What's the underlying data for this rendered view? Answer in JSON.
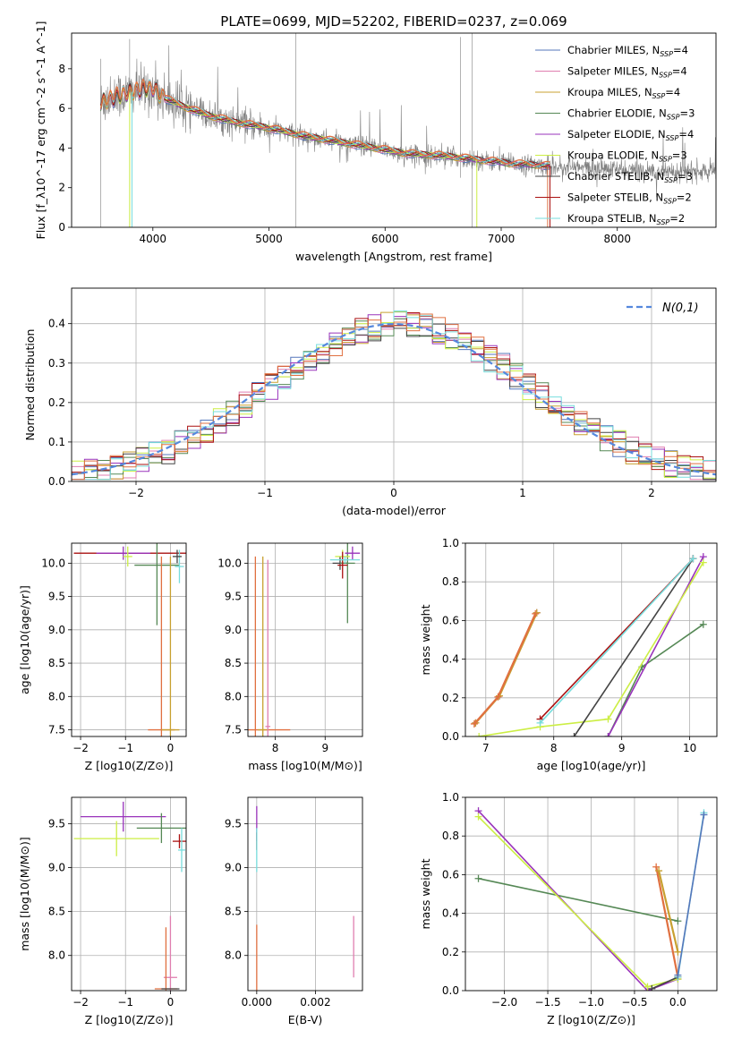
{
  "title": "PLATE=0699, MJD=52202, FIBERID=0237, z=0.069",
  "models": [
    {
      "name": "Chabrier MILES",
      "color": "#5577bb"
    },
    {
      "name": "Salpeter MILES",
      "color": "#e07fb0"
    },
    {
      "name": "Kroupa MILES",
      "color": "#c8a030"
    },
    {
      "name": "Chabrier ELODIE",
      "color": "#558855"
    },
    {
      "name": "Salpeter ELODIE",
      "color": "#9933bb"
    },
    {
      "name": "Kroupa ELODIE",
      "color": "#ccee44"
    },
    {
      "name": "Chabrier STELIB",
      "color": "#444444"
    },
    {
      "name": "Salpeter STELIB",
      "color": "#aa1111"
    },
    {
      "name": "Kroupa STELIB",
      "color": "#77dddd"
    },
    {
      "name": "highlight",
      "color": "#e07040"
    }
  ],
  "chart_data": [
    {
      "id": "spectrum",
      "type": "line",
      "xlabel": "wavelength [Angstrom, rest frame]",
      "ylabel": "Flux [f_λ10^-17 erg cm^-2 s^-1 A^-1]",
      "xlim": [
        3300,
        8850
      ],
      "ylim": [
        0,
        9.8
      ],
      "xticks": [
        4000,
        5000,
        6000,
        7000,
        8000
      ],
      "yticks": [
        0,
        2,
        4,
        6,
        8
      ],
      "grid": false,
      "legend_position": "top-right",
      "legend": [
        {
          "label": "Chabrier MILES",
          "nssp": "4",
          "model": 0
        },
        {
          "label": "Salpeter MILES",
          "nssp": "4",
          "model": 1
        },
        {
          "label": "Kroupa MILES",
          "nssp": "4",
          "model": 2
        },
        {
          "label": "Chabrier ELODIE",
          "nssp": "3",
          "model": 3
        },
        {
          "label": "Salpeter ELODIE",
          "nssp": "4",
          "model": 4
        },
        {
          "label": "Kroupa ELODIE",
          "nssp": "3",
          "model": 5
        },
        {
          "label": "Chabrier STELIB",
          "nssp": "3",
          "model": 6
        },
        {
          "label": "Salpeter STELIB",
          "nssp": "2",
          "model": 7
        },
        {
          "label": "Kroupa STELIB",
          "nssp": "2",
          "model": 8
        }
      ],
      "data_range": [
        3550,
        7420
      ],
      "continuum": {
        "x": [
          3550,
          3700,
          3850,
          4000,
          4100,
          4300,
          4500,
          4700,
          5000,
          5300,
          5600,
          5900,
          6200,
          6500,
          6800,
          7100,
          7400,
          7700,
          8000,
          8300,
          8700
        ],
        "y": [
          6.3,
          6.6,
          6.9,
          7.0,
          6.5,
          6.0,
          5.6,
          5.3,
          5.0,
          4.6,
          4.3,
          4.0,
          3.7,
          3.6,
          3.4,
          3.2,
          3.1,
          3.0,
          2.9,
          2.85,
          2.8
        ]
      }
    },
    {
      "id": "residuals",
      "type": "line",
      "xlabel": "(data-model)/error",
      "ylabel": "Normed distribution",
      "xlim": [
        -2.5,
        2.5
      ],
      "ylim": [
        0,
        0.49
      ],
      "xticks": [
        -2,
        -1,
        0,
        1,
        2
      ],
      "yticks": [
        0.0,
        0.1,
        0.2,
        0.3,
        0.4
      ],
      "grid": true,
      "legend_position": "top-right",
      "legend": [
        {
          "label": "N(0,1)",
          "color": "#5588dd"
        }
      ],
      "bin_width": 0.1
    },
    {
      "id": "age-Z",
      "type": "scatter",
      "xlabel": "Z [log10(Z/Z⊙)]",
      "ylabel": "age  [log10(age/yr)]",
      "xlim": [
        -2.2,
        0.35
      ],
      "ylim": [
        7.4,
        10.3
      ],
      "xticks": [
        -2,
        -1,
        0
      ],
      "yticks": [
        7.5,
        8.0,
        8.5,
        9.0,
        9.5,
        10.0
      ],
      "grid": true,
      "points": [
        {
          "x": -0.85,
          "y": 10.15,
          "xerr": 1.3,
          "yerr": 0.0,
          "model": 7
        },
        {
          "x": -1.05,
          "y": 10.15,
          "xerr": 0.6,
          "yerr": 0.1,
          "model": 4
        },
        {
          "x": -0.3,
          "y": 9.97,
          "xerr": 0.5,
          "yerr": 0.9,
          "model": 3
        },
        {
          "x": -0.2,
          "y": 7.5,
          "xerr": 0.3,
          "yerr": 2.6,
          "model": 9
        },
        {
          "x": 0.0,
          "y": 7.5,
          "xerr": 0.2,
          "yerr": 2.6,
          "model": 2
        },
        {
          "x": 0.2,
          "y": 9.95,
          "xerr": 0.1,
          "yerr": 0.25,
          "model": 8
        },
        {
          "x": 0.15,
          "y": 10.1,
          "xerr": 0.1,
          "yerr": 0.1,
          "model": 6
        },
        {
          "x": -0.95,
          "y": 10.1,
          "xerr": 0.1,
          "yerr": 0.15,
          "model": 5
        }
      ]
    },
    {
      "id": "age-mass",
      "type": "scatter",
      "xlabel": "mass [log10(M/M⊙)]",
      "ylabel": "",
      "xlim": [
        7.45,
        9.75
      ],
      "ylim": [
        7.4,
        10.3
      ],
      "xticks": [
        8,
        9
      ],
      "yticks": [
        7.5,
        8.0,
        8.5,
        9.0,
        9.5,
        10.0
      ],
      "grid": true,
      "points": [
        {
          "x": 7.6,
          "y": 7.5,
          "xerr": 0.7,
          "yerr": 2.6,
          "model": 9
        },
        {
          "x": 7.75,
          "y": 7.5,
          "xerr": 0.1,
          "yerr": 2.6,
          "model": 2
        },
        {
          "x": 7.85,
          "y": 7.55,
          "xerr": 0.05,
          "yerr": 2.5,
          "model": 1
        },
        {
          "x": 9.3,
          "y": 10.0,
          "xerr": 0.15,
          "yerr": 0.1,
          "model": 6
        },
        {
          "x": 9.45,
          "y": 10.0,
          "xerr": 0.15,
          "yerr": 0.9,
          "model": 3
        },
        {
          "x": 9.55,
          "y": 10.15,
          "xerr": 0.15,
          "yerr": 0.1,
          "model": 4
        },
        {
          "x": 9.35,
          "y": 10.1,
          "xerr": 0.15,
          "yerr": 0.1,
          "model": 5
        },
        {
          "x": 9.35,
          "y": 9.97,
          "xerr": 0.1,
          "yerr": 0.2,
          "model": 7
        },
        {
          "x": 9.4,
          "y": 10.05,
          "xerr": 0.3,
          "yerr": 0.05,
          "model": 8
        }
      ]
    },
    {
      "id": "weight-age",
      "type": "line",
      "xlabel": "age  [log10(age/yr)]",
      "ylabel": "mass weight",
      "xlim": [
        6.7,
        10.4
      ],
      "ylim": [
        0,
        1.0
      ],
      "xticks": [
        7,
        8,
        9,
        10
      ],
      "yticks": [
        0.0,
        0.2,
        0.4,
        0.6,
        0.8,
        1.0
      ],
      "grid": true,
      "series": [
        {
          "model": 0,
          "x": [
            6.85,
            7.2,
            7.75
          ],
          "y": [
            0.07,
            0.21,
            0.64
          ]
        },
        {
          "model": 1,
          "x": [
            6.85,
            7.2,
            7.75
          ],
          "y": [
            0.07,
            0.21,
            0.64
          ]
        },
        {
          "model": 2,
          "x": [
            6.85,
            7.2,
            7.75
          ],
          "y": [
            0.07,
            0.21,
            0.64
          ]
        },
        {
          "model": 9,
          "x": [
            6.83,
            7.18,
            7.73
          ],
          "y": [
            0.065,
            0.205,
            0.635
          ]
        },
        {
          "model": 3,
          "x": [
            8.8,
            9.3,
            10.2
          ],
          "y": [
            0.0,
            0.36,
            0.58
          ]
        },
        {
          "model": 4,
          "x": [
            8.8,
            10.2
          ],
          "y": [
            0.0,
            0.93
          ]
        },
        {
          "model": 5,
          "x": [
            6.9,
            7.8,
            8.8,
            10.2
          ],
          "y": [
            0.0,
            0.05,
            0.09,
            0.9
          ]
        },
        {
          "model": 6,
          "x": [
            8.3,
            10.05
          ],
          "y": [
            0.0,
            0.92
          ]
        },
        {
          "model": 7,
          "x": [
            7.8,
            10.05
          ],
          "y": [
            0.09,
            0.92
          ]
        },
        {
          "model": 8,
          "x": [
            7.8,
            10.05
          ],
          "y": [
            0.07,
            0.92
          ]
        }
      ]
    },
    {
      "id": "mass-Z",
      "type": "scatter",
      "xlabel": "Z [log10(Z/Z⊙)]",
      "ylabel": "mass [log10(M/M⊙)]",
      "xlim": [
        -2.2,
        0.35
      ],
      "ylim": [
        7.6,
        9.8
      ],
      "xticks": [
        -2,
        -1,
        0
      ],
      "yticks": [
        8.0,
        8.5,
        9.0,
        9.5
      ],
      "grid": true,
      "points": [
        {
          "x": -1.05,
          "y": 9.58,
          "xerr": 0.95,
          "yerr": 0.17,
          "model": 4
        },
        {
          "x": -1.2,
          "y": 9.33,
          "xerr": 0.95,
          "yerr": 0.2,
          "model": 5
        },
        {
          "x": -0.2,
          "y": 9.45,
          "xerr": 0.55,
          "yerr": 0.17,
          "model": 3
        },
        {
          "x": 0.2,
          "y": 9.3,
          "xerr": 0.15,
          "yerr": 0.08,
          "model": 7
        },
        {
          "x": 0.25,
          "y": 9.2,
          "xerr": 0.08,
          "yerr": 0.25,
          "model": 8
        },
        {
          "x": 0.0,
          "y": 7.75,
          "xerr": 0.15,
          "yerr": 0.7,
          "model": 1
        },
        {
          "x": -0.1,
          "y": 7.62,
          "xerr": 0.25,
          "yerr": 0.7,
          "model": 9
        },
        {
          "x": 0.0,
          "y": 7.62,
          "xerr": 0.2,
          "yerr": 0.0,
          "model": 6
        }
      ]
    },
    {
      "id": "mass-EBV",
      "type": "scatter",
      "xlabel": "E(B-V)",
      "ylabel": "",
      "xlim": [
        -0.0003,
        0.0036
      ],
      "ylim": [
        7.6,
        9.8
      ],
      "xticks": [
        0.0,
        0.002
      ],
      "xticklabels": [
        "0.000",
        "0.002"
      ],
      "yticks": [
        8.0,
        8.5,
        9.0,
        9.5
      ],
      "grid": true,
      "points": [
        {
          "x": 0.0,
          "y": 9.5,
          "xerr": 0.0,
          "yerr": 0.2,
          "model": 4
        },
        {
          "x": 0.0,
          "y": 9.3,
          "xerr": 0.0,
          "yerr": 0.1,
          "model": 7
        },
        {
          "x": 0.0,
          "y": 9.2,
          "xerr": 0.0,
          "yerr": 0.25,
          "model": 8
        },
        {
          "x": 0.0,
          "y": 7.9,
          "xerr": 0.0,
          "yerr": 0.45,
          "model": 9
        },
        {
          "x": 0.0033,
          "y": 8.1,
          "xerr": 0.0,
          "yerr": 0.35,
          "model": 1
        }
      ]
    },
    {
      "id": "weight-Z",
      "type": "line",
      "xlabel": "Z [log10(Z/Z⊙)]",
      "ylabel": "mass weight",
      "xlim": [
        -2.45,
        0.45
      ],
      "ylim": [
        0,
        1.0
      ],
      "xticks": [
        -2.0,
        -1.5,
        -1.0,
        -0.5,
        0.0
      ],
      "xticklabels": [
        "−2.0",
        "−1.5",
        "−1.0",
        "−0.5",
        "0.0"
      ],
      "yticks": [
        0.0,
        0.2,
        0.4,
        0.6,
        0.8,
        1.0
      ],
      "grid": true,
      "series": [
        {
          "model": 3,
          "x": [
            -2.3,
            0.0
          ],
          "y": [
            0.58,
            0.36
          ]
        },
        {
          "model": 4,
          "x": [
            -2.3,
            -0.35,
            0.0
          ],
          "y": [
            0.93,
            0.0,
            0.06
          ]
        },
        {
          "model": 5,
          "x": [
            -2.3,
            -0.35,
            0.0
          ],
          "y": [
            0.9,
            0.02,
            0.06
          ]
        },
        {
          "model": 6,
          "x": [
            -0.3,
            0.0
          ],
          "y": [
            0.01,
            0.07
          ]
        },
        {
          "model": 9,
          "x": [
            -0.25,
            0.0
          ],
          "y": [
            0.64,
            0.07
          ]
        },
        {
          "model": 2,
          "x": [
            -0.22,
            0.0
          ],
          "y": [
            0.62,
            0.2
          ]
        },
        {
          "model": 8,
          "x": [
            0.0,
            0.3
          ],
          "y": [
            0.07,
            0.92
          ]
        },
        {
          "model": 0,
          "x": [
            0.0,
            0.3
          ],
          "y": [
            0.08,
            0.91
          ]
        }
      ]
    }
  ]
}
